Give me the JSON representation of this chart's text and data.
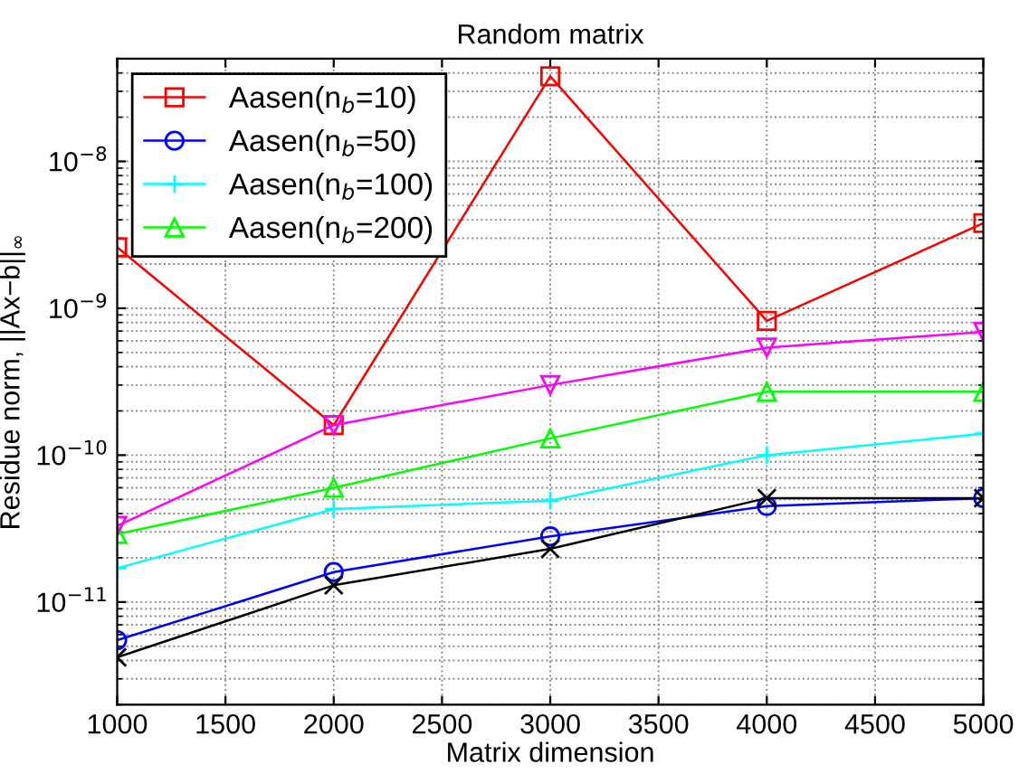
{
  "chart_data": {
    "type": "line",
    "title": "Random matrix",
    "xlabel": "Matrix dimension",
    "ylabel": "Residue norm, ||Ax−b||$_{∞}$",
    "x": [
      1000,
      2000,
      3000,
      4000,
      5000
    ],
    "series": [
      {
        "name": "Aasen(n$_{b}$=10)",
        "color": "#ff0000",
        "marker": "square",
        "values": [
          2.6e-09,
          1.6e-10,
          3.8e-08,
          8.2e-10,
          3.8e-09
        ]
      },
      {
        "name": "Aasen(n$_{b}$=50)",
        "color": "#0000ff",
        "marker": "circle",
        "values": [
          5.5e-12,
          1.6e-11,
          2.8e-11,
          4.5e-11,
          5.1e-11
        ]
      },
      {
        "name": "Aasen(n$_{b}$=100)",
        "color": "#00ffff",
        "marker": "plus",
        "values": [
          1.7e-11,
          4.3e-11,
          4.9e-11,
          1e-10,
          1.4e-10
        ]
      },
      {
        "name": "Aasen(n$_{b}$=200)",
        "color": "#00ff00",
        "marker": "triangle",
        "values": [
          2.9e-11,
          6e-11,
          1.3e-10,
          2.7e-10,
          2.7e-10
        ]
      },
      {
        "color": "#ff00ff",
        "marker": "triangle_down",
        "values": [
          3.3e-11,
          1.6e-10,
          3e-10,
          5.4e-10,
          6.9e-10
        ]
      },
      {
        "color": "#000000",
        "marker": "cross",
        "values": [
          4.2e-12,
          1.3e-11,
          2.3e-11,
          5.1e-11,
          5.1e-11
        ]
      }
    ],
    "log": "y",
    "xlim": [
      1000,
      5000
    ],
    "ylim": [
      2e-12,
      5e-08
    ],
    "xticks": [
      1000,
      1500,
      2000,
      2500,
      3000,
      3500,
      4000,
      4500,
      5000
    ],
    "yticks": [
      {
        "value": 1e-11,
        "label": "10$^{−11}$"
      },
      {
        "value": 1e-10,
        "label": "10$^{−10}$"
      },
      {
        "value": 1e-09,
        "label": "10$^{−9}$"
      },
      {
        "value": 1e-08,
        "label": "10$^{−8}$"
      }
    ],
    "grid": true,
    "line_style": "solid",
    "legend": "top left"
  }
}
